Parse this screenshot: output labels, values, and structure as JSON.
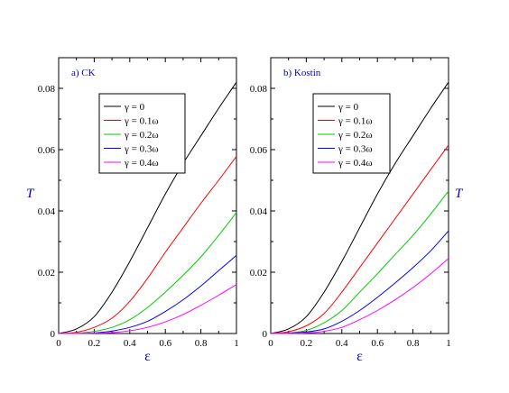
{
  "chart_data": [
    {
      "type": "line",
      "title": "a) CK",
      "xlabel": "ε",
      "ylabel": "T",
      "xlim": [
        0,
        1
      ],
      "ylim": [
        0,
        0.09
      ],
      "xticks": [
        0,
        0.2,
        0.4,
        0.6,
        0.8,
        1
      ],
      "yticks": [
        0,
        0.02,
        0.04,
        0.06,
        0.08
      ],
      "xtick_labels": [
        "0",
        "0.2",
        "0.4",
        "0.6",
        "0.8",
        "1"
      ],
      "ytick_labels": [
        "0",
        "0.02",
        "0.04",
        "0.06",
        "0.08"
      ],
      "ylabel_side": "left",
      "legend_position": "top-left",
      "grid": false,
      "x": [
        0,
        0.1,
        0.2,
        0.3,
        0.4,
        0.5,
        0.6,
        0.7,
        0.8,
        0.9,
        1.0
      ],
      "series": [
        {
          "name": "γ = 0",
          "color": "#000000",
          "values": [
            0,
            0.0015,
            0.0055,
            0.0135,
            0.0235,
            0.0345,
            0.0455,
            0.0555,
            0.0645,
            0.0735,
            0.082
          ]
        },
        {
          "name": "γ = 0.1ω",
          "color": "#ff0000",
          "values": [
            0,
            0.0004,
            0.002,
            0.005,
            0.0105,
            0.018,
            0.0265,
            0.0345,
            0.0425,
            0.05,
            0.0578
          ]
        },
        {
          "name": "γ = 0.2ω",
          "color": "#00cc00",
          "values": [
            0,
            0.0001,
            0.0007,
            0.002,
            0.0045,
            0.0085,
            0.0135,
            0.019,
            0.025,
            0.032,
            0.0395
          ]
        },
        {
          "name": "γ = 0.3ω",
          "color": "#0000ff",
          "values": [
            0,
            0,
            0.0002,
            0.0008,
            0.002,
            0.004,
            0.0072,
            0.011,
            0.0155,
            0.0205,
            0.0255
          ]
        },
        {
          "name": "γ = 0.4ω",
          "color": "#ff00ff",
          "values": [
            0,
            0,
            0.0001,
            0.0003,
            0.0009,
            0.002,
            0.0038,
            0.0062,
            0.0092,
            0.0125,
            0.016
          ]
        }
      ]
    },
    {
      "type": "line",
      "title": "b) Kostin",
      "xlabel": "ε",
      "ylabel": "T",
      "xlim": [
        0,
        1
      ],
      "ylim": [
        0,
        0.09
      ],
      "xticks": [
        0,
        0.2,
        0.4,
        0.6,
        0.8,
        1
      ],
      "yticks": [
        0,
        0.02,
        0.04,
        0.06,
        0.08
      ],
      "xtick_labels": [
        "0",
        "0.2",
        "0.4",
        "0.6",
        "0.8",
        "1"
      ],
      "ytick_labels": [
        "0",
        "0.02",
        "0.04",
        "0.06",
        "0.08"
      ],
      "ylabel_side": "right",
      "legend_position": "top-left",
      "grid": false,
      "x": [
        0,
        0.1,
        0.2,
        0.3,
        0.4,
        0.5,
        0.6,
        0.7,
        0.8,
        0.9,
        1.0
      ],
      "series": [
        {
          "name": "γ = 0",
          "color": "#000000",
          "values": [
            0,
            0.0015,
            0.0055,
            0.0135,
            0.0235,
            0.0345,
            0.0455,
            0.0555,
            0.0645,
            0.0735,
            0.082
          ]
        },
        {
          "name": "γ = 0.1ω",
          "color": "#ff0000",
          "values": [
            0,
            0.0006,
            0.0025,
            0.0065,
            0.0135,
            0.0215,
            0.0295,
            0.0375,
            0.0455,
            0.0535,
            0.0615
          ]
        },
        {
          "name": "γ = 0.2ω",
          "color": "#00cc00",
          "values": [
            0,
            0.0002,
            0.001,
            0.0035,
            0.0075,
            0.0135,
            0.0195,
            0.0258,
            0.032,
            0.039,
            0.0465
          ]
        },
        {
          "name": "γ = 0.3ω",
          "color": "#0000ff",
          "values": [
            0,
            0.0001,
            0.0005,
            0.0015,
            0.004,
            0.0075,
            0.0118,
            0.0165,
            0.0215,
            0.027,
            0.0335
          ]
        },
        {
          "name": "γ = 0.4ω",
          "color": "#ff00ff",
          "values": [
            0,
            0,
            0.0002,
            0.0007,
            0.002,
            0.0045,
            0.0075,
            0.011,
            0.015,
            0.0195,
            0.0245
          ]
        }
      ]
    }
  ]
}
